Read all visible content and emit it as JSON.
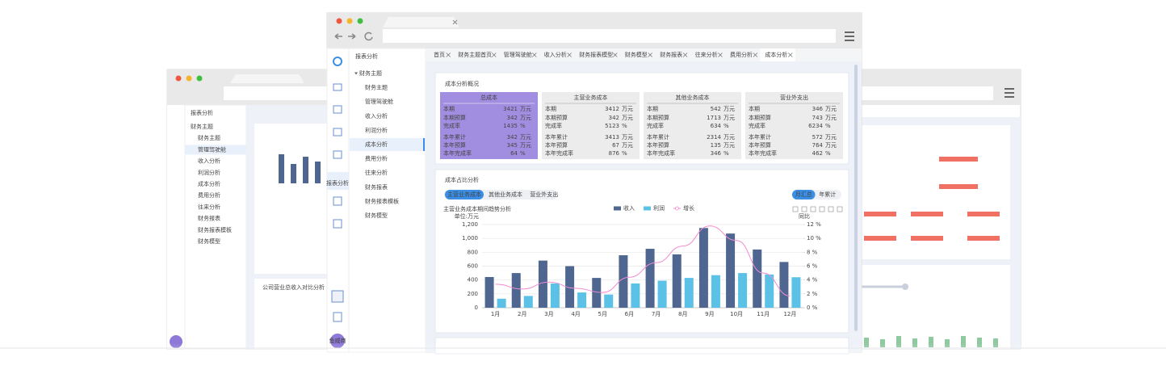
{
  "chart_data": {
    "type": "bar",
    "title": "主营业务成本期间趋势分析",
    "y_label": "单位:万元",
    "y2_label": "同比",
    "categories": [
      "1月",
      "2月",
      "3月",
      "4月",
      "5月",
      "6月",
      "7月",
      "8月",
      "9月",
      "10月",
      "11月",
      "12月"
    ],
    "series": [
      {
        "name": "收入",
        "color": "#4f6790",
        "values": [
          443,
          500,
          680,
          600,
          430,
          757,
          850,
          770,
          1150,
          1070,
          840,
          660
        ]
      },
      {
        "name": "利润",
        "color": "#5bc1e6",
        "values": [
          130,
          170,
          350,
          220,
          190,
          350,
          390,
          430,
          470,
          500,
          480,
          440
        ]
      },
      {
        "name": "增长",
        "color": "#f28bd0",
        "type": "line",
        "axis": "y2",
        "values": [
          3.4,
          2.7,
          3.7,
          2.8,
          2.2,
          4.4,
          6.5,
          8.9,
          11.8,
          9.7,
          5.0,
          1.7
        ]
      }
    ],
    "ylim": [
      0,
      1200
    ],
    "yticks": [
      0,
      200,
      400,
      600,
      800,
      {
        "value": 1000,
        "label": "1,000"
      },
      {
        "value": 1200,
        "label": "1,200"
      }
    ],
    "y2lim": [
      0,
      12
    ],
    "y2ticks": [
      {
        "value": 0,
        "label": "0 %"
      },
      {
        "value": 2,
        "label": "2 %"
      },
      {
        "value": 4,
        "label": "4 %"
      },
      {
        "value": 6,
        "label": "6 %"
      },
      {
        "value": 8,
        "label": "8 %"
      },
      {
        "value": 10,
        "label": "10 %"
      },
      {
        "value": 12,
        "label": "12 %"
      }
    ],
    "grid": true
  },
  "page": {
    "sidebar_label": "报表分析",
    "avatar": "鱼威商",
    "nav_header": "报表分析",
    "nav": [
      {
        "label": "财务主题",
        "group": true
      },
      {
        "label": "财务主题"
      },
      {
        "label": "管理驾驶舱"
      },
      {
        "label": "收入分析"
      },
      {
        "label": "利润分析"
      },
      {
        "label": "成本分析",
        "active": true
      },
      {
        "label": "费用分析"
      },
      {
        "label": "往来分析"
      },
      {
        "label": "财务报表"
      },
      {
        "label": "财务报表模板"
      },
      {
        "label": "财务模型"
      }
    ],
    "tabs": [
      {
        "label": "首页"
      },
      {
        "label": "财务主题首页"
      },
      {
        "label": "管理驾驶舱"
      },
      {
        "label": "收入分析"
      },
      {
        "label": "财务报表模型"
      },
      {
        "label": "财务模型"
      },
      {
        "label": "财务报表"
      },
      {
        "label": "往来分析"
      },
      {
        "label": "费用分析"
      },
      {
        "label": "成本分析",
        "active": true
      }
    ],
    "overview": {
      "title": "成本分析概况",
      "cards": [
        {
          "title": "总成本",
          "highlight": true,
          "rows": [
            {
              "label": "本期",
              "value": 3421,
              "unit": "万元"
            },
            {
              "label": "本期预算",
              "value": 342,
              "unit": "万元"
            },
            {
              "label": "完成率",
              "value": 1435,
              "unit": "%"
            },
            {
              "label": "本年累计",
              "value": 342,
              "unit": "万元"
            },
            {
              "label": "本年预算",
              "value": 345,
              "unit": "万元"
            },
            {
              "label": "本年完成率",
              "value": 64,
              "unit": "%"
            }
          ]
        },
        {
          "title": "主营业务成本",
          "rows": [
            {
              "label": "本期",
              "value": 3412,
              "unit": "万元"
            },
            {
              "label": "本期预算",
              "value": 342,
              "unit": "万元"
            },
            {
              "label": "完成率",
              "value": 5123,
              "unit": "%"
            },
            {
              "label": "本年累计",
              "value": 3413,
              "unit": "万元"
            },
            {
              "label": "本年预算",
              "value": 67,
              "unit": "万元"
            },
            {
              "label": "本年完成率",
              "value": 876,
              "unit": "%"
            }
          ]
        },
        {
          "title": "其他业务成本",
          "rows": [
            {
              "label": "本期",
              "value": 542,
              "unit": "万元"
            },
            {
              "label": "本期预算",
              "value": 1713,
              "unit": "万元"
            },
            {
              "label": "完成率",
              "value": 634,
              "unit": "%"
            },
            {
              "label": "本年累计",
              "value": 2314,
              "unit": "万元"
            },
            {
              "label": "本年预算",
              "value": 135,
              "unit": "万元"
            },
            {
              "label": "本年完成率",
              "value": 346,
              "unit": "%"
            }
          ]
        },
        {
          "title": "营业外支出",
          "rows": [
            {
              "label": "本期",
              "value": 346,
              "unit": "万元"
            },
            {
              "label": "本期预算",
              "value": 743,
              "unit": "万元"
            },
            {
              "label": "完成率",
              "value": 6234,
              "unit": "%"
            },
            {
              "label": "本年累计",
              "value": 572,
              "unit": "万元"
            },
            {
              "label": "本年预算",
              "value": 764,
              "unit": "万元"
            },
            {
              "label": "本年完成率",
              "value": 462,
              "unit": "%"
            }
          ]
        }
      ]
    },
    "chart_card": {
      "title": "成本占比分析",
      "tabs": [
        {
          "label": "主营业务成本",
          "active": true
        },
        {
          "label": "其他业务成本"
        },
        {
          "label": "营业外支出"
        }
      ],
      "toggles": [
        {
          "label": "月汇总",
          "active": true
        },
        {
          "label": "年累计"
        }
      ]
    },
    "left_window": {
      "nav_header": "报表分析",
      "nav": [
        "财务主题",
        "财务主题",
        "管理驾驶舱",
        "收入分析",
        "利润分析",
        "成本分析",
        "费用分析",
        "往来分析",
        "财务报表",
        "财务报表模板",
        "财务模型"
      ],
      "card_title": "公司营业总收入对比分析"
    }
  }
}
